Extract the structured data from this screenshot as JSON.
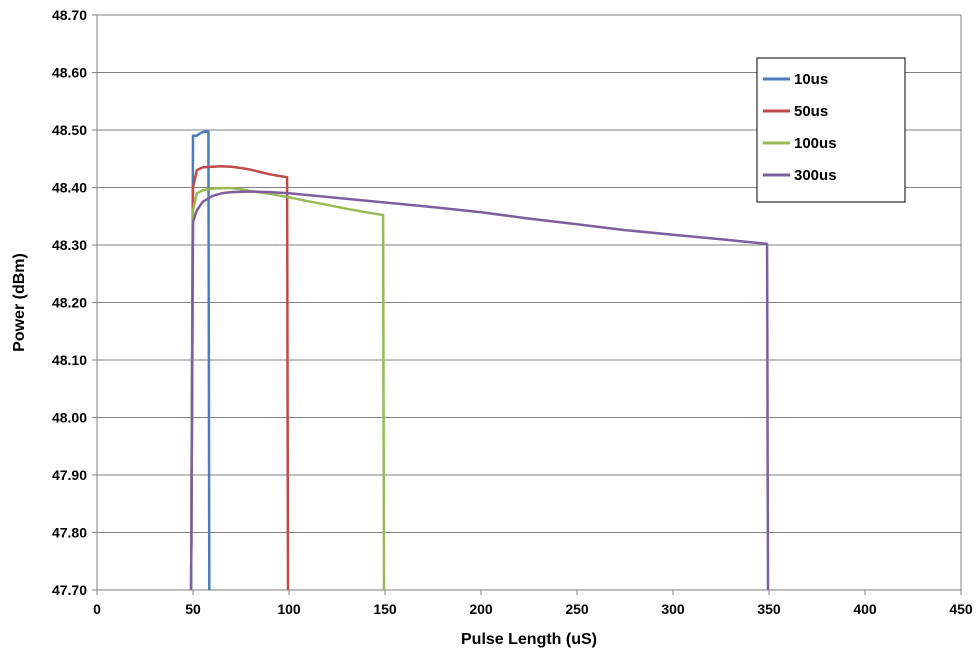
{
  "chart_data": {
    "type": "line",
    "title": "",
    "xlabel": "Pulse Length (uS)",
    "ylabel": "Power (dBm)",
    "xlim": [
      0,
      450
    ],
    "ylim": [
      47.7,
      48.7
    ],
    "x_ticks": [
      "0",
      "50",
      "100",
      "150",
      "200",
      "250",
      "300",
      "350",
      "400",
      "450"
    ],
    "y_ticks": [
      "47.70",
      "47.80",
      "47.90",
      "48.00",
      "48.10",
      "48.20",
      "48.30",
      "48.40",
      "48.50",
      "48.60",
      "48.70"
    ],
    "grid": "horizontal",
    "legend_position": "top-right",
    "series": [
      {
        "name": "10us",
        "color": "#4a7ebb",
        "points": [
          [
            49,
            47.7
          ],
          [
            50,
            48.49
          ],
          [
            52,
            48.49
          ],
          [
            54,
            48.495
          ],
          [
            56,
            48.497
          ],
          [
            58,
            48.497
          ],
          [
            58.5,
            47.7
          ]
        ]
      },
      {
        "name": "50us",
        "color": "#be4b48",
        "points": [
          [
            49,
            47.7
          ],
          [
            50,
            48.4
          ],
          [
            52,
            48.43
          ],
          [
            55,
            48.435
          ],
          [
            60,
            48.436
          ],
          [
            65,
            48.437
          ],
          [
            70,
            48.436
          ],
          [
            75,
            48.434
          ],
          [
            80,
            48.431
          ],
          [
            85,
            48.427
          ],
          [
            90,
            48.423
          ],
          [
            95,
            48.42
          ],
          [
            99,
            48.418
          ],
          [
            99.5,
            47.7
          ]
        ]
      },
      {
        "name": "100us",
        "color": "#98b954",
        "points": [
          [
            49,
            47.7
          ],
          [
            50,
            48.36
          ],
          [
            52,
            48.39
          ],
          [
            55,
            48.395
          ],
          [
            60,
            48.398
          ],
          [
            65,
            48.399
          ],
          [
            70,
            48.399
          ],
          [
            75,
            48.397
          ],
          [
            80,
            48.394
          ],
          [
            90,
            48.389
          ],
          [
            100,
            48.383
          ],
          [
            110,
            48.376
          ],
          [
            120,
            48.37
          ],
          [
            130,
            48.363
          ],
          [
            140,
            48.357
          ],
          [
            149,
            48.352
          ],
          [
            149.5,
            47.7
          ]
        ]
      },
      {
        "name": "300us",
        "color": "#7d5fa0",
        "points": [
          [
            49,
            47.7
          ],
          [
            50,
            48.34
          ],
          [
            52,
            48.36
          ],
          [
            55,
            48.375
          ],
          [
            60,
            48.385
          ],
          [
            65,
            48.39
          ],
          [
            70,
            48.392
          ],
          [
            80,
            48.393
          ],
          [
            90,
            48.392
          ],
          [
            100,
            48.39
          ],
          [
            125,
            48.382
          ],
          [
            150,
            48.374
          ],
          [
            175,
            48.366
          ],
          [
            200,
            48.357
          ],
          [
            225,
            48.346
          ],
          [
            250,
            48.336
          ],
          [
            275,
            48.326
          ],
          [
            300,
            48.318
          ],
          [
            325,
            48.31
          ],
          [
            349,
            48.302
          ],
          [
            349.5,
            47.7
          ]
        ]
      }
    ]
  }
}
